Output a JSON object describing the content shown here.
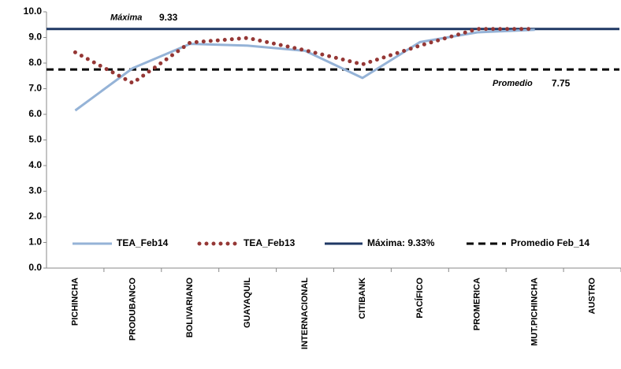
{
  "chart_data": {
    "type": "line",
    "categories": [
      "PICHINCHA",
      "PRODUBANCO",
      "BOLIVARIANO",
      "GUAYAQUIL",
      "INTERNACIONAL",
      "CITIBANK",
      "PACÍFICO",
      "PROMERICA",
      "MUT.PICHINCHA",
      "AUSTRO"
    ],
    "series": [
      {
        "name": "TEA_Feb14",
        "color": "#95b3d7",
        "style": "solid",
        "values": [
          6.15,
          7.8,
          8.75,
          8.68,
          8.48,
          7.42,
          8.82,
          9.2,
          9.3,
          null
        ]
      },
      {
        "name": "TEA_Feb13",
        "color": "#953735",
        "style": "dotted",
        "values": [
          8.42,
          7.22,
          8.8,
          8.98,
          8.5,
          7.95,
          8.68,
          9.33,
          9.33,
          null
        ]
      }
    ],
    "reference_lines": [
      {
        "name": "Máxima: 9.33%",
        "label": "Máxima",
        "value": 9.33,
        "color": "#1f3864",
        "style": "solid"
      },
      {
        "name": "Promedio Feb_14",
        "label": "Promedio",
        "value": 7.75,
        "color": "#000000",
        "style": "dashed"
      }
    ],
    "ylim": [
      0,
      10
    ],
    "yticks": [
      {
        "value": 0,
        "label": "0.0"
      },
      {
        "value": 1,
        "label": "1.0"
      },
      {
        "value": 2,
        "label": "2.0"
      },
      {
        "value": 3,
        "label": "3.0"
      },
      {
        "value": 4,
        "label": "4.0"
      },
      {
        "value": 5,
        "label": "5.0"
      },
      {
        "value": 6,
        "label": "6.0"
      },
      {
        "value": 7,
        "label": "7.0"
      },
      {
        "value": 8,
        "label": "8.0"
      },
      {
        "value": 9,
        "label": "9.0"
      },
      {
        "value": 10,
        "label": "10.0"
      }
    ],
    "legend": "bottom"
  }
}
